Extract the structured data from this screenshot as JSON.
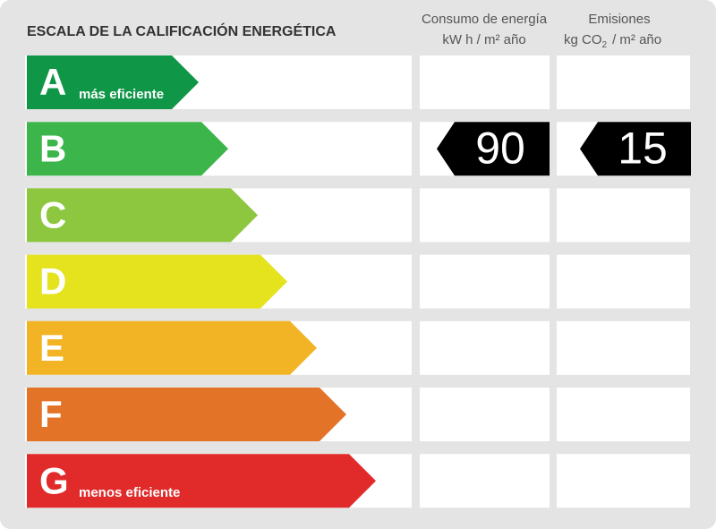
{
  "header": {
    "title": "ESCALA DE LA CALIFICACIÓN ENERGÉTICA",
    "consumption": {
      "line1": "Consumo de energía",
      "line2": "kW h  / m² año"
    },
    "emissions": {
      "line1": "Emisiones",
      "line2a": "kg CO",
      "line2sub": "2",
      "line2b": "/ m² año"
    }
  },
  "rows": [
    {
      "letter": "A",
      "note": "más eficiente",
      "color": "#0f9647"
    },
    {
      "letter": "B",
      "color": "#3cb54a",
      "consumption": 90,
      "emissions": 15
    },
    {
      "letter": "C",
      "color": "#8dc63f"
    },
    {
      "letter": "D",
      "color": "#e5e21e"
    },
    {
      "letter": "E",
      "color": "#f2b325"
    },
    {
      "letter": "F",
      "color": "#e27327"
    },
    {
      "letter": "G",
      "note": "menos eficiente",
      "color": "#e12b2a"
    }
  ]
}
